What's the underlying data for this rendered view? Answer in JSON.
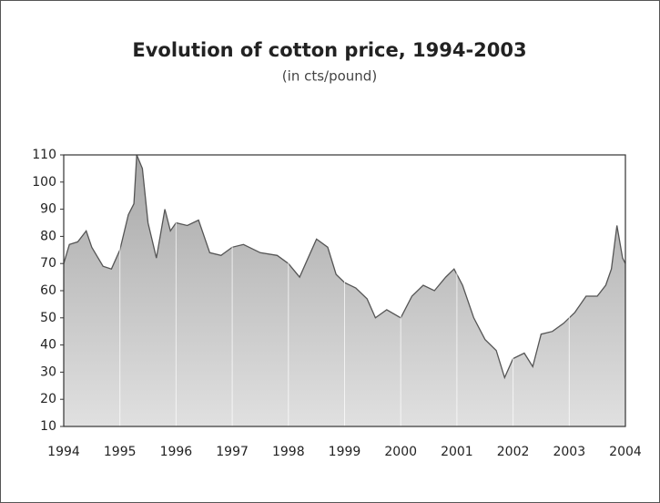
{
  "chart_data": {
    "type": "area",
    "title": "Evolution of cotton price, 1994-2003",
    "subtitle": "(in cts/pound)",
    "x": [
      1994.0,
      1994.1,
      1994.25,
      1994.4,
      1994.5,
      1994.7,
      1994.85,
      1995.0,
      1995.15,
      1995.25,
      1995.3,
      1995.4,
      1995.5,
      1995.65,
      1995.8,
      1995.9,
      1996.0,
      1996.2,
      1996.4,
      1996.6,
      1996.8,
      1997.0,
      1997.2,
      1997.5,
      1997.8,
      1998.0,
      1998.2,
      1998.35,
      1998.5,
      1998.7,
      1998.85,
      1999.0,
      1999.2,
      1999.4,
      1999.55,
      1999.75,
      2000.0,
      2000.2,
      2000.4,
      2000.6,
      2000.8,
      2000.95,
      2001.1,
      2001.3,
      2001.5,
      2001.7,
      2001.85,
      2002.0,
      2002.2,
      2002.35,
      2002.5,
      2002.7,
      2002.9,
      2003.1,
      2003.3,
      2003.5,
      2003.65,
      2003.75,
      2003.85,
      2003.95,
      2004.0
    ],
    "series": [
      {
        "name": "Cotton price",
        "color": "#555555",
        "fill": "#b0b0b0",
        "values": [
          70,
          77,
          78,
          82,
          76,
          69,
          68,
          75,
          88,
          92,
          110,
          105,
          85,
          72,
          90,
          82,
          85,
          84,
          86,
          74,
          73,
          76,
          77,
          74,
          73,
          70,
          65,
          72,
          79,
          76,
          66,
          63,
          61,
          57,
          50,
          53,
          50,
          58,
          62,
          60,
          65,
          68,
          62,
          50,
          42,
          38,
          28,
          35,
          37,
          32,
          44,
          45,
          48,
          52,
          58,
          58,
          62,
          68,
          84,
          72,
          70
        ]
      }
    ],
    "xlim": [
      1994,
      2004
    ],
    "xticks": [
      1994,
      1995,
      1996,
      1997,
      1998,
      1999,
      2000,
      2001,
      2002,
      2003,
      2004
    ],
    "ylim": [
      10,
      110
    ],
    "yticks": [
      10,
      20,
      30,
      40,
      50,
      60,
      70,
      80,
      90,
      100,
      110
    ],
    "grid": true
  }
}
